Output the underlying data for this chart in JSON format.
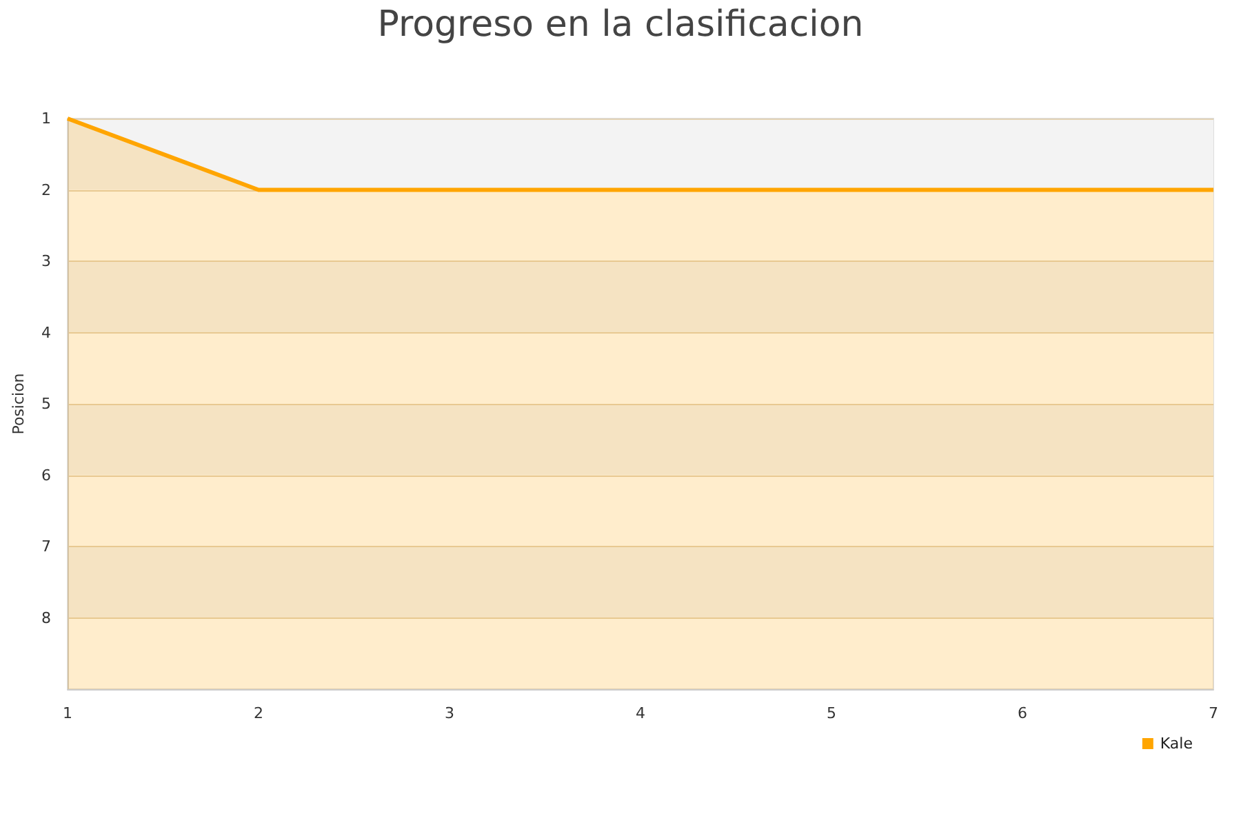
{
  "chart_data": {
    "type": "area",
    "title": "Progreso en la clasificacion",
    "ylabel": "Posicion",
    "x": [
      1,
      2,
      3,
      4,
      5,
      6,
      7
    ],
    "series": [
      {
        "name": "Kale",
        "color": "#ffa500",
        "values": [
          1,
          2,
          2,
          2,
          2,
          2,
          2
        ]
      }
    ],
    "xlim": [
      1,
      7
    ],
    "xticks": [
      1,
      2,
      3,
      4,
      5,
      6,
      7
    ],
    "ylim": [
      9,
      1
    ],
    "yticks": [
      1,
      2,
      3,
      4,
      5,
      6,
      7,
      8
    ],
    "grid": "y",
    "legend": "bottom right",
    "marker": "none",
    "line_style": "solid"
  }
}
